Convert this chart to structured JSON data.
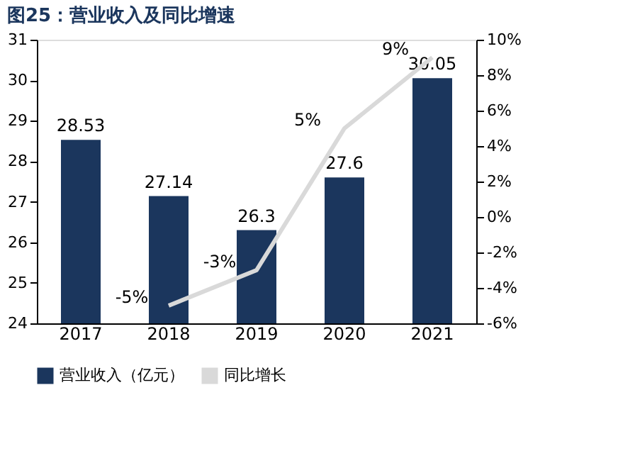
{
  "chart_data": {
    "type": "bar",
    "title": "图25：营业收入及同比增速",
    "categories": [
      "2017",
      "2018",
      "2019",
      "2020",
      "2021"
    ],
    "series": [
      {
        "name": "营业收入（亿元）",
        "color": "#1b365d",
        "values": [
          28.53,
          27.14,
          26.3,
          27.6,
          30.05
        ],
        "value_labels": [
          "28.53",
          "27.14",
          "26.3",
          "27.6",
          "30.05"
        ]
      },
      {
        "name": "同比增长",
        "type": "line",
        "axis": "y2",
        "color": "#d9d9d9",
        "values": [
          null,
          -5,
          -3,
          5,
          9
        ],
        "value_labels": [
          null,
          "-5%",
          "-3%",
          "5%",
          "9%"
        ]
      }
    ],
    "ylim": [
      24,
      31
    ],
    "yticks": [
      24,
      25,
      26,
      27,
      28,
      29,
      30,
      31
    ],
    "y2lim": [
      -6,
      10
    ],
    "y2ticks": [
      {
        "value": -6,
        "label": "-6%"
      },
      {
        "value": -4,
        "label": "-4%"
      },
      {
        "value": -2,
        "label": "-2%"
      },
      {
        "value": 0,
        "label": "0%"
      },
      {
        "value": 2,
        "label": "2%"
      },
      {
        "value": 4,
        "label": "4%"
      },
      {
        "value": 6,
        "label": "6%"
      },
      {
        "value": 8,
        "label": "8%"
      },
      {
        "value": 10,
        "label": "10%"
      }
    ],
    "legend": "bottom",
    "grid": false
  }
}
